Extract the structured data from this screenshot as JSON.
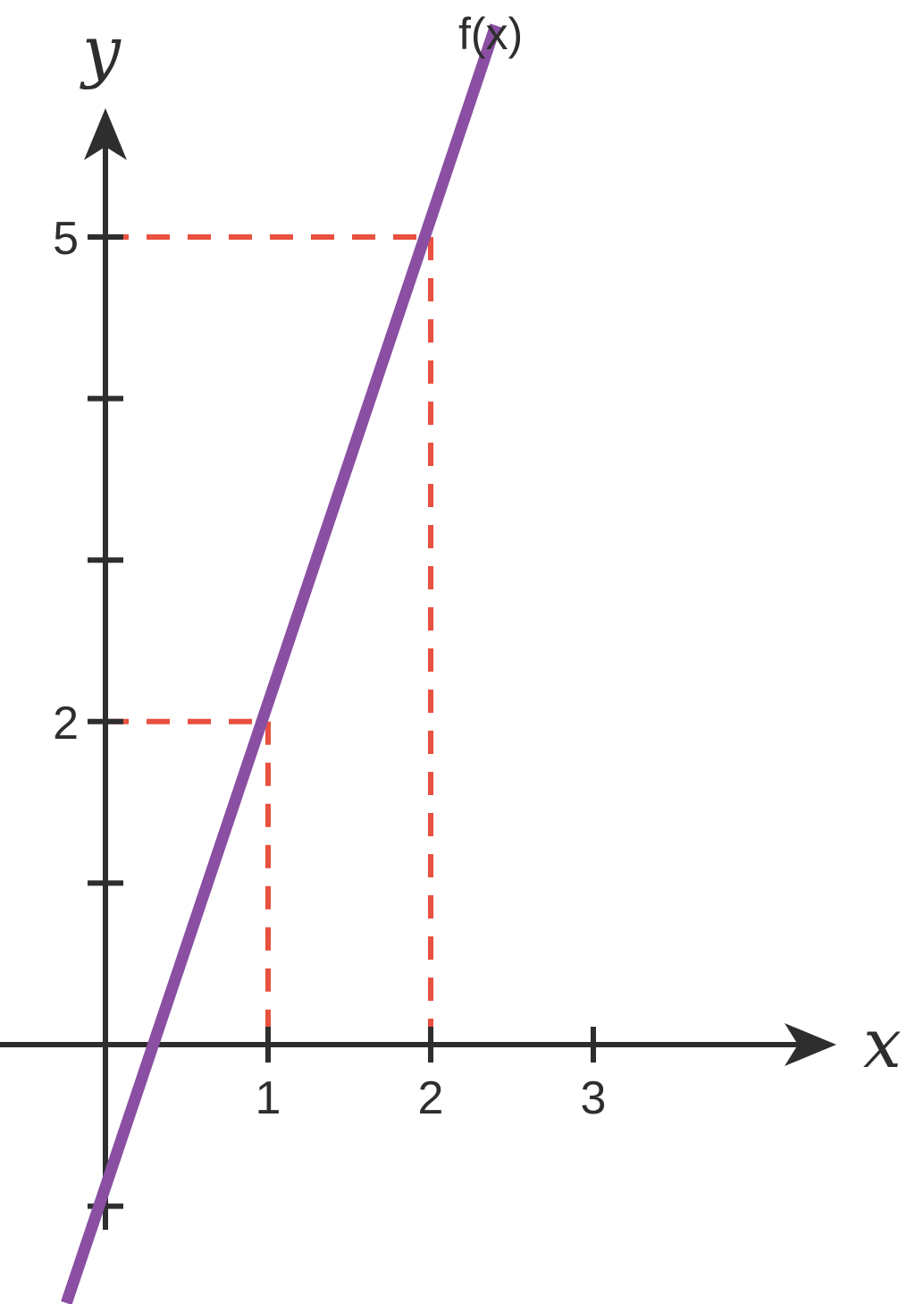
{
  "chart_data": {
    "type": "line",
    "title": "",
    "xlabel": "x",
    "ylabel": "y",
    "xlim": [
      -0.65,
      4.6
    ],
    "ylim": [
      -1.62,
      5.8
    ],
    "x_ticks": [
      1,
      2,
      3
    ],
    "x_tick_labels": [
      "1",
      "2",
      "3"
    ],
    "y_ticks": [
      -1,
      1,
      2,
      3,
      4,
      5
    ],
    "y_tick_labels": [
      "2",
      "5"
    ],
    "y_labeled_ticks": [
      2,
      5
    ],
    "grid": false,
    "series": [
      {
        "name": "f(x)",
        "x": [
          -0.24,
          2.4
        ],
        "y": [
          -1.6,
          6.31
        ],
        "color": "#8a4fa3"
      }
    ],
    "reference_points": [
      {
        "x": 1,
        "y": 2
      },
      {
        "x": 2,
        "y": 5
      }
    ],
    "colors": {
      "axis": "#2e2e2e",
      "line": "#8a4fa3",
      "guides": "#e8503f"
    }
  }
}
